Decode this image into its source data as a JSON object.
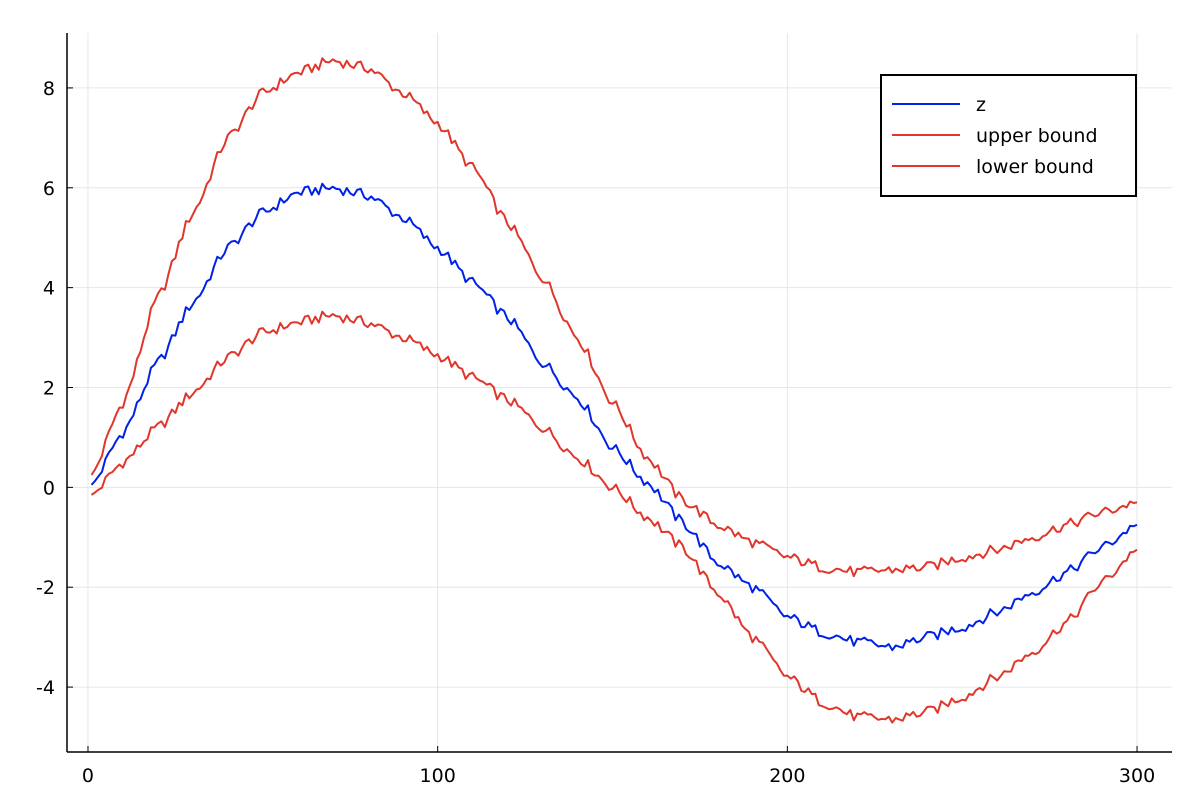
{
  "chart_data": {
    "type": "line",
    "title": "",
    "xlabel": "",
    "ylabel": "",
    "xlim": [
      -6,
      310
    ],
    "ylim": [
      -5.3,
      9.1
    ],
    "x_ticks": [
      0,
      100,
      200,
      300
    ],
    "x_tick_labels": [
      "0",
      "100",
      "200",
      "300"
    ],
    "y_ticks": [
      -4,
      -2,
      0,
      2,
      4,
      6,
      8
    ],
    "y_tick_labels": [
      "-4",
      "-2",
      "0",
      "2",
      "4",
      "6",
      "8"
    ],
    "grid": true,
    "legend_position": "top-right",
    "x_range": [
      1,
      300
    ],
    "series": [
      {
        "name": "z",
        "color": "#0022e6",
        "points": [
          [
            1,
            0.05
          ],
          [
            10,
            1.1
          ],
          [
            20,
            2.5
          ],
          [
            30,
            3.7
          ],
          [
            40,
            4.8
          ],
          [
            50,
            5.5
          ],
          [
            60,
            5.9
          ],
          [
            70,
            6.0
          ],
          [
            80,
            5.85
          ],
          [
            90,
            5.4
          ],
          [
            100,
            4.8
          ],
          [
            110,
            4.1
          ],
          [
            120,
            3.4
          ],
          [
            130,
            2.5
          ],
          [
            140,
            1.8
          ],
          [
            150,
            0.8
          ],
          [
            160,
            0.1
          ],
          [
            170,
            -0.7
          ],
          [
            180,
            -1.5
          ],
          [
            190,
            -2.0
          ],
          [
            200,
            -2.6
          ],
          [
            210,
            -2.9
          ],
          [
            220,
            -3.1
          ],
          [
            230,
            -3.2
          ],
          [
            240,
            -3.0
          ],
          [
            250,
            -2.8
          ],
          [
            260,
            -2.5
          ],
          [
            270,
            -2.1
          ],
          [
            280,
            -1.7
          ],
          [
            290,
            -1.2
          ],
          [
            300,
            -0.75
          ]
        ]
      },
      {
        "name": "upper bound",
        "color": "#e0362b",
        "points": [
          [
            1,
            0.25
          ],
          [
            10,
            1.7
          ],
          [
            20,
            3.8
          ],
          [
            30,
            5.5
          ],
          [
            40,
            7.0
          ],
          [
            50,
            7.9
          ],
          [
            60,
            8.3
          ],
          [
            70,
            8.55
          ],
          [
            80,
            8.4
          ],
          [
            90,
            7.9
          ],
          [
            100,
            7.3
          ],
          [
            110,
            6.4
          ],
          [
            120,
            5.3
          ],
          [
            130,
            4.2
          ],
          [
            140,
            3.0
          ],
          [
            150,
            1.7
          ],
          [
            160,
            0.6
          ],
          [
            170,
            -0.25
          ],
          [
            180,
            -0.75
          ],
          [
            190,
            -1.1
          ],
          [
            200,
            -1.4
          ],
          [
            210,
            -1.6
          ],
          [
            220,
            -1.7
          ],
          [
            230,
            -1.65
          ],
          [
            240,
            -1.6
          ],
          [
            250,
            -1.4
          ],
          [
            260,
            -1.25
          ],
          [
            270,
            -1.0
          ],
          [
            280,
            -0.75
          ],
          [
            290,
            -0.5
          ],
          [
            300,
            -0.3
          ]
        ]
      },
      {
        "name": "lower bound",
        "color": "#e0362b",
        "points": [
          [
            1,
            -0.15
          ],
          [
            10,
            0.5
          ],
          [
            20,
            1.2
          ],
          [
            30,
            1.9
          ],
          [
            40,
            2.6
          ],
          [
            50,
            3.1
          ],
          [
            60,
            3.3
          ],
          [
            70,
            3.45
          ],
          [
            80,
            3.3
          ],
          [
            90,
            3.0
          ],
          [
            100,
            2.65
          ],
          [
            110,
            2.2
          ],
          [
            120,
            1.75
          ],
          [
            130,
            1.2
          ],
          [
            140,
            0.6
          ],
          [
            150,
            0.0
          ],
          [
            160,
            -0.6
          ],
          [
            170,
            -1.2
          ],
          [
            180,
            -2.1
          ],
          [
            190,
            -3.0
          ],
          [
            200,
            -3.8
          ],
          [
            210,
            -4.3
          ],
          [
            220,
            -4.6
          ],
          [
            230,
            -4.65
          ],
          [
            240,
            -4.5
          ],
          [
            250,
            -4.2
          ],
          [
            260,
            -3.8
          ],
          [
            270,
            -3.3
          ],
          [
            280,
            -2.7
          ],
          [
            290,
            -1.9
          ],
          [
            300,
            -1.25
          ]
        ]
      }
    ]
  }
}
